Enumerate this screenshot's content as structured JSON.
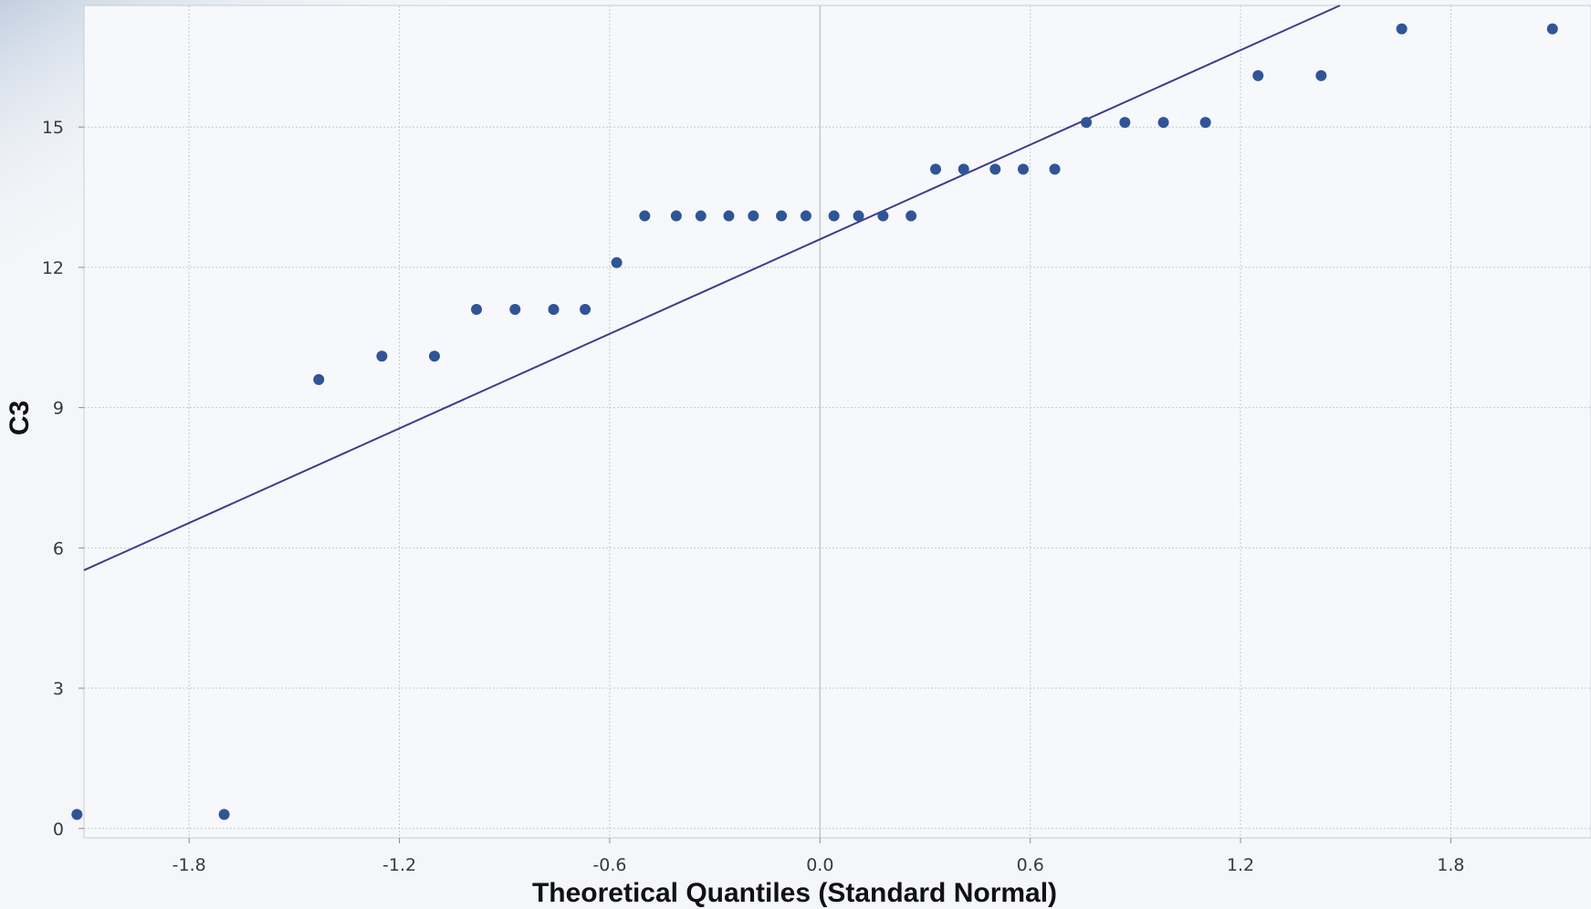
{
  "chart_data": {
    "type": "scatter",
    "xlabel": "Theoretical Quantiles (Standard Normal)",
    "ylabel": "C3",
    "xlim": [
      -2.1,
      2.2
    ],
    "ylim": [
      -0.2,
      17.6
    ],
    "x_ticks": [
      "-1.8",
      "-1.2",
      "-0.6",
      "0.0",
      "0.6",
      "1.2",
      "1.8"
    ],
    "y_ticks": [
      "0",
      "3",
      "6",
      "9",
      "12",
      "15"
    ],
    "grid": true,
    "points": [
      {
        "x": -2.12,
        "y": 0.3
      },
      {
        "x": -1.7,
        "y": 0.3
      },
      {
        "x": -1.43,
        "y": 9.6
      },
      {
        "x": -1.25,
        "y": 10.1
      },
      {
        "x": -1.1,
        "y": 10.1
      },
      {
        "x": -0.98,
        "y": 11.1
      },
      {
        "x": -0.87,
        "y": 11.1
      },
      {
        "x": -0.76,
        "y": 11.1
      },
      {
        "x": -0.67,
        "y": 11.1
      },
      {
        "x": -0.58,
        "y": 12.1
      },
      {
        "x": -0.5,
        "y": 13.1
      },
      {
        "x": -0.41,
        "y": 13.1
      },
      {
        "x": -0.34,
        "y": 13.1
      },
      {
        "x": -0.26,
        "y": 13.1
      },
      {
        "x": -0.19,
        "y": 13.1
      },
      {
        "x": -0.11,
        "y": 13.1
      },
      {
        "x": -0.04,
        "y": 13.1
      },
      {
        "x": 0.04,
        "y": 13.1
      },
      {
        "x": 0.11,
        "y": 13.1
      },
      {
        "x": 0.18,
        "y": 13.1
      },
      {
        "x": 0.26,
        "y": 13.1
      },
      {
        "x": 0.33,
        "y": 14.1
      },
      {
        "x": 0.41,
        "y": 14.1
      },
      {
        "x": 0.5,
        "y": 14.1
      },
      {
        "x": 0.58,
        "y": 14.1
      },
      {
        "x": 0.67,
        "y": 14.1
      },
      {
        "x": 0.76,
        "y": 15.1
      },
      {
        "x": 0.87,
        "y": 15.1
      },
      {
        "x": 0.98,
        "y": 15.1
      },
      {
        "x": 1.1,
        "y": 15.1
      },
      {
        "x": 1.25,
        "y": 16.1
      },
      {
        "x": 1.43,
        "y": 16.1
      },
      {
        "x": 1.66,
        "y": 17.1
      },
      {
        "x": 2.09,
        "y": 17.1
      }
    ],
    "reference_line": {
      "intercept": 12.6,
      "slope": 3.37
    },
    "colors": {
      "point": "#2f5597",
      "line": "#3f3a8c",
      "grid": "#c8c8c8",
      "zero_line": "#b0b0b0"
    }
  }
}
